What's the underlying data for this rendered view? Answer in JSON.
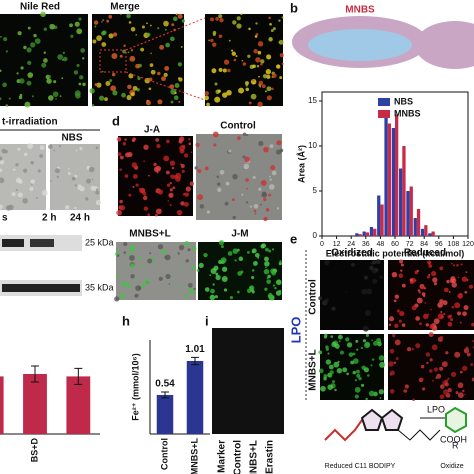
{
  "panels": {
    "a": {
      "labels": [
        "Nile Red",
        "Merge"
      ]
    },
    "b": {
      "letter": "b",
      "molecule": "MNBS"
    },
    "c": {
      "title": "t-irradiation",
      "label": "NBS",
      "blot_times": [
        "s",
        "2 h",
        "24 h"
      ],
      "markers": [
        "25 kDa",
        "35 kDa"
      ]
    },
    "d": {
      "letter": "d",
      "labels": [
        "J-A",
        "Control",
        "MNBS+L",
        "J-M"
      ]
    },
    "e": {
      "letter": "e",
      "columns": [
        "Oxidized",
        "Reduced"
      ],
      "rows": [
        "Control",
        "MNBS+L"
      ],
      "side": "LPO",
      "scheme": {
        "reactant": "Reduced C11 BODIPY",
        "arrow": "LPO",
        "product": "Oxidize",
        "group": "COOH",
        "r": "R"
      }
    },
    "i": {
      "letter": "i",
      "lanes": [
        "Marker",
        "Control",
        "MNBS+L",
        "Erastin"
      ]
    }
  },
  "chart_data": [
    {
      "type": "bar",
      "x": [
        30,
        36,
        42,
        48,
        54,
        60,
        66,
        72,
        78,
        84,
        90
      ],
      "series": [
        {
          "name": "NBS",
          "color": "#2f3fa6",
          "values": [
            0.3,
            0.5,
            1,
            4.5,
            14,
            12,
            7.5,
            5,
            2,
            0.8,
            0.3
          ]
        },
        {
          "name": "MNBS",
          "color": "#c72b45",
          "values": [
            0.2,
            0.4,
            0.8,
            3.5,
            12.5,
            13.5,
            10,
            5.5,
            3,
            1.2,
            0.5
          ]
        }
      ],
      "xlim": [
        0,
        120
      ],
      "xticks": [
        0,
        12,
        24,
        36,
        48,
        60,
        72,
        84,
        96,
        108,
        120
      ],
      "ylim": [
        0,
        16
      ],
      "yticks": [
        0,
        5,
        10,
        15
      ],
      "xlabel": "Electrostatic potential (kcal/mol)",
      "ylabel": "Area (Å²)"
    },
    {
      "type": "bar",
      "panel": "h",
      "categories": [
        "Control",
        "MNBS+L"
      ],
      "values": [
        0.54,
        1.01
      ],
      "errors": [
        0.04,
        0.05
      ],
      "color": "#2b3592",
      "ylim": [
        0,
        1.3
      ],
      "ylabel": "Fe²⁺ (mmol/10⁶)"
    },
    {
      "type": "bar",
      "categories": [
        null,
        "BS+D",
        null
      ],
      "values": [
        0.72,
        0.75,
        0.72
      ],
      "errors": [
        0.12,
        0.1,
        0.1
      ],
      "color": "#c02a4a",
      "ylim": [
        0,
        1.3
      ]
    }
  ]
}
